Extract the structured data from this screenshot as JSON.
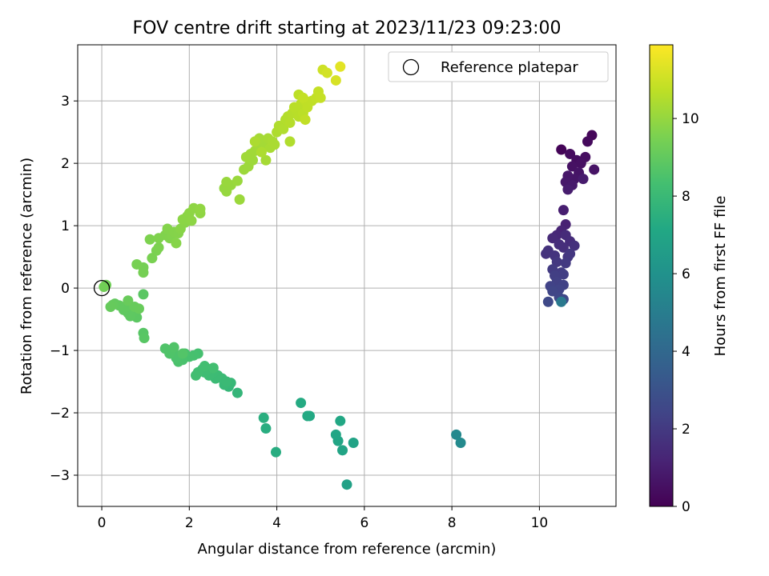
{
  "chart_data": {
    "type": "scatter",
    "title": "FOV centre drift starting at 2023/11/23 09:23:00",
    "xlabel": "Angular distance from reference (arcmin)",
    "ylabel": "Rotation from reference (arcmin)",
    "xlim": [
      -0.55,
      11.75
    ],
    "ylim": [
      -3.5,
      3.9
    ],
    "xticks": [
      "0",
      "2",
      "4",
      "6",
      "8",
      "10"
    ],
    "xtick_values": [
      0,
      2,
      4,
      6,
      8,
      10
    ],
    "yticks": [
      "−3",
      "−2",
      "−1",
      "0",
      "1",
      "2",
      "3"
    ],
    "ytick_values": [
      -3,
      -2,
      -1,
      0,
      1,
      2,
      3
    ],
    "grid": true,
    "legend": {
      "position": "top-right",
      "label": "Reference platepar"
    },
    "reference_point": {
      "x": 0,
      "y": 0
    },
    "colorbar": {
      "label": "Hours from first FF file",
      "range": [
        0,
        11.9
      ],
      "ticks": [
        "0",
        "2",
        "4",
        "6",
        "8",
        "10"
      ],
      "tick_values": [
        0,
        2,
        4,
        6,
        8,
        10
      ],
      "colormap": "viridis"
    },
    "points": [
      {
        "x": 10.5,
        "y": 2.22,
        "h": 0.1
      },
      {
        "x": 11.2,
        "y": 2.45,
        "h": 0.2
      },
      {
        "x": 11.1,
        "y": 2.35,
        "h": 0.3
      },
      {
        "x": 10.7,
        "y": 2.15,
        "h": 0.35
      },
      {
        "x": 10.85,
        "y": 2.05,
        "h": 0.4
      },
      {
        "x": 11.05,
        "y": 2.1,
        "h": 0.45
      },
      {
        "x": 10.95,
        "y": 2.0,
        "h": 0.5
      },
      {
        "x": 10.75,
        "y": 1.95,
        "h": 0.55
      },
      {
        "x": 11.25,
        "y": 1.9,
        "h": 0.6
      },
      {
        "x": 10.9,
        "y": 1.85,
        "h": 0.65
      },
      {
        "x": 10.8,
        "y": 1.75,
        "h": 0.7
      },
      {
        "x": 10.65,
        "y": 1.8,
        "h": 0.75
      },
      {
        "x": 10.6,
        "y": 1.7,
        "h": 0.8
      },
      {
        "x": 10.75,
        "y": 1.65,
        "h": 0.85
      },
      {
        "x": 11.0,
        "y": 1.75,
        "h": 0.9
      },
      {
        "x": 10.65,
        "y": 1.58,
        "h": 0.95
      },
      {
        "x": 10.55,
        "y": 1.25,
        "h": 1.0
      },
      {
        "x": 10.6,
        "y": 1.02,
        "h": 1.1
      },
      {
        "x": 10.5,
        "y": 0.92,
        "h": 1.2
      },
      {
        "x": 10.4,
        "y": 0.85,
        "h": 1.3
      },
      {
        "x": 10.3,
        "y": 0.8,
        "h": 1.4
      },
      {
        "x": 10.6,
        "y": 0.85,
        "h": 1.45
      },
      {
        "x": 10.7,
        "y": 0.75,
        "h": 1.5
      },
      {
        "x": 10.45,
        "y": 0.7,
        "h": 1.55
      },
      {
        "x": 10.55,
        "y": 0.65,
        "h": 1.6
      },
      {
        "x": 10.8,
        "y": 0.68,
        "h": 1.65
      },
      {
        "x": 10.15,
        "y": 0.55,
        "h": 1.7
      },
      {
        "x": 10.2,
        "y": 0.6,
        "h": 1.75
      },
      {
        "x": 10.35,
        "y": 0.52,
        "h": 1.8
      },
      {
        "x": 10.65,
        "y": 0.5,
        "h": 1.85
      },
      {
        "x": 10.7,
        "y": 0.55,
        "h": 1.9
      },
      {
        "x": 10.4,
        "y": 0.42,
        "h": 1.95
      },
      {
        "x": 10.6,
        "y": 0.4,
        "h": 2.0
      },
      {
        "x": 10.3,
        "y": 0.3,
        "h": 2.05
      },
      {
        "x": 10.5,
        "y": 0.25,
        "h": 2.1
      },
      {
        "x": 10.55,
        "y": 0.22,
        "h": 2.15
      },
      {
        "x": 10.35,
        "y": 0.2,
        "h": 2.2
      },
      {
        "x": 10.4,
        "y": 0.1,
        "h": 2.25
      },
      {
        "x": 10.55,
        "y": 0.05,
        "h": 2.3
      },
      {
        "x": 10.25,
        "y": 0.03,
        "h": 2.35
      },
      {
        "x": 10.45,
        "y": -0.02,
        "h": 2.4
      },
      {
        "x": 10.3,
        "y": -0.05,
        "h": 2.45
      },
      {
        "x": 10.45,
        "y": -0.15,
        "h": 2.5
      },
      {
        "x": 10.55,
        "y": -0.18,
        "h": 2.55
      },
      {
        "x": 10.2,
        "y": -0.22,
        "h": 2.6
      },
      {
        "x": 10.5,
        "y": -0.22,
        "h": 4.8
      },
      {
        "x": 8.1,
        "y": -2.35,
        "h": 5.5
      },
      {
        "x": 8.2,
        "y": -2.48,
        "h": 5.6
      },
      {
        "x": 5.6,
        "y": -3.15,
        "h": 6.8
      },
      {
        "x": 5.75,
        "y": -2.48,
        "h": 6.9
      },
      {
        "x": 5.5,
        "y": -2.6,
        "h": 6.95
      },
      {
        "x": 5.4,
        "y": -2.45,
        "h": 7.0
      },
      {
        "x": 5.35,
        "y": -2.35,
        "h": 7.05
      },
      {
        "x": 5.45,
        "y": -2.13,
        "h": 7.1
      },
      {
        "x": 4.75,
        "y": -2.05,
        "h": 7.15
      },
      {
        "x": 4.7,
        "y": -2.05,
        "h": 7.2
      },
      {
        "x": 4.55,
        "y": -1.84,
        "h": 7.25
      },
      {
        "x": 3.98,
        "y": -2.63,
        "h": 7.35
      },
      {
        "x": 3.75,
        "y": -2.25,
        "h": 7.4
      },
      {
        "x": 3.7,
        "y": -2.08,
        "h": 7.45
      },
      {
        "x": 3.1,
        "y": -1.68,
        "h": 7.8
      },
      {
        "x": 2.9,
        "y": -1.58,
        "h": 7.85
      },
      {
        "x": 2.95,
        "y": -1.52,
        "h": 7.9
      },
      {
        "x": 2.8,
        "y": -1.55,
        "h": 7.95
      },
      {
        "x": 2.75,
        "y": -1.45,
        "h": 8.0
      },
      {
        "x": 2.85,
        "y": -1.5,
        "h": 8.02
      },
      {
        "x": 2.6,
        "y": -1.45,
        "h": 8.05
      },
      {
        "x": 2.65,
        "y": -1.4,
        "h": 8.08
      },
      {
        "x": 2.55,
        "y": -1.35,
        "h": 8.1
      },
      {
        "x": 2.45,
        "y": -1.4,
        "h": 8.12
      },
      {
        "x": 2.35,
        "y": -1.35,
        "h": 8.15
      },
      {
        "x": 2.3,
        "y": -1.3,
        "h": 8.18
      },
      {
        "x": 2.45,
        "y": -1.3,
        "h": 8.2
      },
      {
        "x": 2.2,
        "y": -1.35,
        "h": 8.22
      },
      {
        "x": 2.15,
        "y": -1.4,
        "h": 8.25
      },
      {
        "x": 2.35,
        "y": -1.25,
        "h": 8.28
      },
      {
        "x": 2.55,
        "y": -1.28,
        "h": 8.3
      },
      {
        "x": 2.2,
        "y": -1.05,
        "h": 8.35
      },
      {
        "x": 2.1,
        "y": -1.08,
        "h": 8.38
      },
      {
        "x": 2.0,
        "y": -1.1,
        "h": 8.4
      },
      {
        "x": 1.9,
        "y": -1.05,
        "h": 8.42
      },
      {
        "x": 1.85,
        "y": -1.15,
        "h": 8.45
      },
      {
        "x": 1.75,
        "y": -1.18,
        "h": 8.48
      },
      {
        "x": 1.7,
        "y": -1.12,
        "h": 8.5
      },
      {
        "x": 1.65,
        "y": -1.05,
        "h": 8.52
      },
      {
        "x": 1.6,
        "y": -1.0,
        "h": 8.55
      },
      {
        "x": 1.55,
        "y": -1.05,
        "h": 8.58
      },
      {
        "x": 1.45,
        "y": -0.97,
        "h": 8.6
      },
      {
        "x": 1.65,
        "y": -0.95,
        "h": 8.62
      },
      {
        "x": 1.85,
        "y": -1.05,
        "h": 8.65
      },
      {
        "x": 0.95,
        "y": -0.72,
        "h": 8.75
      },
      {
        "x": 0.97,
        "y": -0.8,
        "h": 8.78
      },
      {
        "x": 0.95,
        "y": -0.1,
        "h": 8.82
      },
      {
        "x": 0.8,
        "y": -0.47,
        "h": 8.85
      },
      {
        "x": 0.7,
        "y": -0.4,
        "h": 8.88
      },
      {
        "x": 0.65,
        "y": -0.45,
        "h": 8.9
      },
      {
        "x": 0.6,
        "y": -0.4,
        "h": 8.92
      },
      {
        "x": 0.5,
        "y": -0.35,
        "h": 8.95
      },
      {
        "x": 0.55,
        "y": -0.3,
        "h": 8.97
      },
      {
        "x": 0.4,
        "y": -0.28,
        "h": 9.0
      },
      {
        "x": 0.3,
        "y": -0.25,
        "h": 9.02
      },
      {
        "x": 0.25,
        "y": -0.27,
        "h": 9.05
      },
      {
        "x": 0.2,
        "y": -0.3,
        "h": 9.08
      },
      {
        "x": 0.75,
        "y": -0.3,
        "h": 9.1
      },
      {
        "x": 0.85,
        "y": -0.33,
        "h": 9.12
      },
      {
        "x": 0.6,
        "y": -0.2,
        "h": 9.14
      },
      {
        "x": 0.1,
        "y": 0.05,
        "h": 9.3
      },
      {
        "x": 0.05,
        "y": 0.02,
        "h": 9.32
      },
      {
        "x": 0.95,
        "y": 0.25,
        "h": 9.4
      },
      {
        "x": 0.95,
        "y": 0.33,
        "h": 9.42
      },
      {
        "x": 0.8,
        "y": 0.38,
        "h": 9.45
      },
      {
        "x": 1.15,
        "y": 0.48,
        "h": 9.5
      },
      {
        "x": 1.25,
        "y": 0.6,
        "h": 9.52
      },
      {
        "x": 1.3,
        "y": 0.65,
        "h": 9.55
      },
      {
        "x": 1.1,
        "y": 0.78,
        "h": 9.58
      },
      {
        "x": 1.3,
        "y": 0.8,
        "h": 9.6
      },
      {
        "x": 1.45,
        "y": 0.85,
        "h": 9.62
      },
      {
        "x": 1.55,
        "y": 0.8,
        "h": 9.64
      },
      {
        "x": 1.6,
        "y": 0.85,
        "h": 9.66
      },
      {
        "x": 1.5,
        "y": 0.95,
        "h": 9.68
      },
      {
        "x": 1.65,
        "y": 0.9,
        "h": 9.7
      },
      {
        "x": 1.75,
        "y": 0.88,
        "h": 9.72
      },
      {
        "x": 1.7,
        "y": 0.72,
        "h": 9.74
      },
      {
        "x": 1.8,
        "y": 0.95,
        "h": 9.76
      },
      {
        "x": 1.9,
        "y": 1.05,
        "h": 9.78
      },
      {
        "x": 1.95,
        "y": 1.15,
        "h": 9.8
      },
      {
        "x": 1.85,
        "y": 1.1,
        "h": 9.82
      },
      {
        "x": 2.0,
        "y": 1.2,
        "h": 9.84
      },
      {
        "x": 2.05,
        "y": 1.08,
        "h": 9.86
      },
      {
        "x": 2.1,
        "y": 1.28,
        "h": 9.88
      },
      {
        "x": 2.25,
        "y": 1.2,
        "h": 9.9
      },
      {
        "x": 2.25,
        "y": 1.27,
        "h": 9.92
      },
      {
        "x": 2.8,
        "y": 1.6,
        "h": 10.0
      },
      {
        "x": 2.85,
        "y": 1.55,
        "h": 10.02
      },
      {
        "x": 2.95,
        "y": 1.65,
        "h": 10.04
      },
      {
        "x": 2.85,
        "y": 1.7,
        "h": 10.06
      },
      {
        "x": 3.1,
        "y": 1.72,
        "h": 10.08
      },
      {
        "x": 3.15,
        "y": 1.42,
        "h": 10.1
      },
      {
        "x": 3.25,
        "y": 1.9,
        "h": 10.12
      },
      {
        "x": 3.35,
        "y": 1.95,
        "h": 10.14
      },
      {
        "x": 3.45,
        "y": 2.05,
        "h": 10.16
      },
      {
        "x": 3.4,
        "y": 2.15,
        "h": 10.18
      },
      {
        "x": 3.3,
        "y": 2.1,
        "h": 10.2
      },
      {
        "x": 3.5,
        "y": 2.2,
        "h": 10.22
      },
      {
        "x": 3.6,
        "y": 2.25,
        "h": 10.24
      },
      {
        "x": 3.7,
        "y": 2.3,
        "h": 10.26
      },
      {
        "x": 3.6,
        "y": 2.4,
        "h": 10.28
      },
      {
        "x": 3.75,
        "y": 2.05,
        "h": 10.3
      },
      {
        "x": 3.8,
        "y": 2.4,
        "h": 10.32
      },
      {
        "x": 3.85,
        "y": 2.25,
        "h": 10.34
      },
      {
        "x": 3.9,
        "y": 2.35,
        "h": 10.36
      },
      {
        "x": 3.95,
        "y": 2.3,
        "h": 10.38
      },
      {
        "x": 3.5,
        "y": 2.35,
        "h": 10.4
      },
      {
        "x": 3.65,
        "y": 2.18,
        "h": 10.42
      },
      {
        "x": 4.0,
        "y": 2.5,
        "h": 10.45
      },
      {
        "x": 4.05,
        "y": 2.6,
        "h": 10.48
      },
      {
        "x": 4.15,
        "y": 2.55,
        "h": 10.5
      },
      {
        "x": 4.2,
        "y": 2.7,
        "h": 10.52
      },
      {
        "x": 4.25,
        "y": 2.75,
        "h": 10.54
      },
      {
        "x": 4.3,
        "y": 2.65,
        "h": 10.56
      },
      {
        "x": 4.35,
        "y": 2.8,
        "h": 10.58
      },
      {
        "x": 4.45,
        "y": 2.85,
        "h": 10.6
      },
      {
        "x": 4.5,
        "y": 2.75,
        "h": 10.62
      },
      {
        "x": 4.4,
        "y": 2.9,
        "h": 10.64
      },
      {
        "x": 4.55,
        "y": 2.95,
        "h": 10.66
      },
      {
        "x": 4.6,
        "y": 2.8,
        "h": 10.68
      },
      {
        "x": 4.5,
        "y": 3.1,
        "h": 10.7
      },
      {
        "x": 4.65,
        "y": 3.0,
        "h": 10.72
      },
      {
        "x": 4.7,
        "y": 2.9,
        "h": 10.74
      },
      {
        "x": 4.8,
        "y": 3.0,
        "h": 10.76
      },
      {
        "x": 4.65,
        "y": 2.7,
        "h": 10.78
      },
      {
        "x": 4.9,
        "y": 3.05,
        "h": 10.8
      },
      {
        "x": 4.6,
        "y": 3.05,
        "h": 10.82
      },
      {
        "x": 4.95,
        "y": 3.15,
        "h": 10.84
      },
      {
        "x": 5.0,
        "y": 3.05,
        "h": 10.86
      },
      {
        "x": 5.05,
        "y": 3.5,
        "h": 11.0
      },
      {
        "x": 5.15,
        "y": 3.45,
        "h": 11.1
      },
      {
        "x": 5.35,
        "y": 3.33,
        "h": 11.2
      },
      {
        "x": 5.45,
        "y": 3.55,
        "h": 11.4
      },
      {
        "x": 4.3,
        "y": 2.35,
        "h": 10.5
      }
    ]
  }
}
